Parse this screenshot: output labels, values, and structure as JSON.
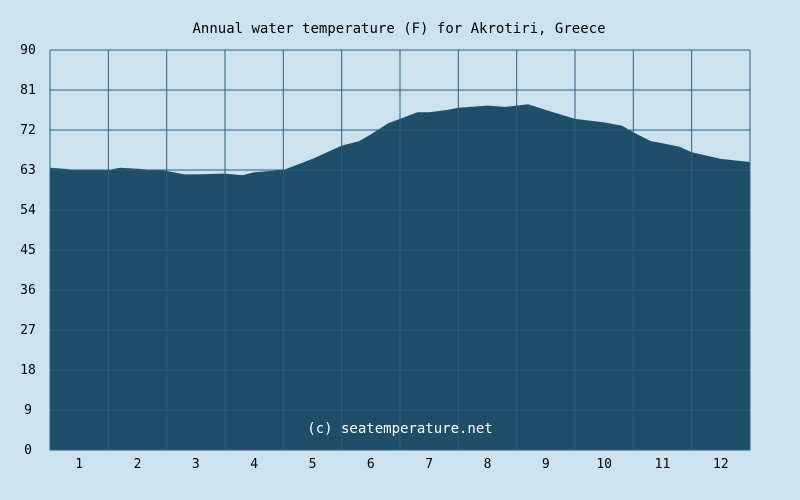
{
  "colors": {
    "background": "#cce3ef",
    "plot_background": "#cce3ef",
    "area_fill": "#1f4e69",
    "grid": "#2d5f7c",
    "watermark": "#ffffff"
  },
  "chart_data": {
    "type": "area",
    "title": "Annual water temperature (F) for Akrotiri, Greece",
    "xlabel": "",
    "ylabel": "",
    "ylim": [
      0,
      90
    ],
    "xlim": [
      0.5,
      12.5
    ],
    "y_ticks": [
      "0",
      "9",
      "18",
      "27",
      "36",
      "45",
      "54",
      "63",
      "72",
      "81",
      "90"
    ],
    "x_ticks": [
      "1",
      "2",
      "3",
      "4",
      "5",
      "6",
      "7",
      "8",
      "9",
      "10",
      "11",
      "12"
    ],
    "grid": true,
    "watermark": "(c) seatemperature.net",
    "series": [
      {
        "x": [
          0.5,
          1.0,
          1.5,
          1.7,
          2.0,
          2.5,
          2.8,
          3.0,
          3.5,
          3.8,
          4.0,
          4.5,
          5.0,
          5.5,
          5.8,
          6.0,
          6.3,
          6.5,
          6.8,
          7.0,
          7.3,
          7.5,
          8.0,
          8.3,
          8.5,
          8.7,
          9.0,
          9.5,
          10.0,
          10.3,
          10.5,
          10.8,
          11.0,
          11.3,
          11.5,
          12.0,
          12.5
        ],
        "values": [
          63.5,
          63.0,
          63.0,
          63.5,
          63.3,
          62.8,
          62.0,
          62.0,
          62.2,
          61.8,
          62.5,
          63.0,
          65.5,
          68.5,
          69.5,
          71.0,
          73.5,
          74.5,
          76.0,
          76.0,
          76.5,
          77.0,
          77.5,
          77.2,
          77.5,
          77.8,
          76.5,
          74.5,
          73.7,
          73.0,
          71.5,
          69.5,
          69.0,
          68.2,
          67.0,
          65.5,
          64.8
        ]
      }
    ]
  }
}
